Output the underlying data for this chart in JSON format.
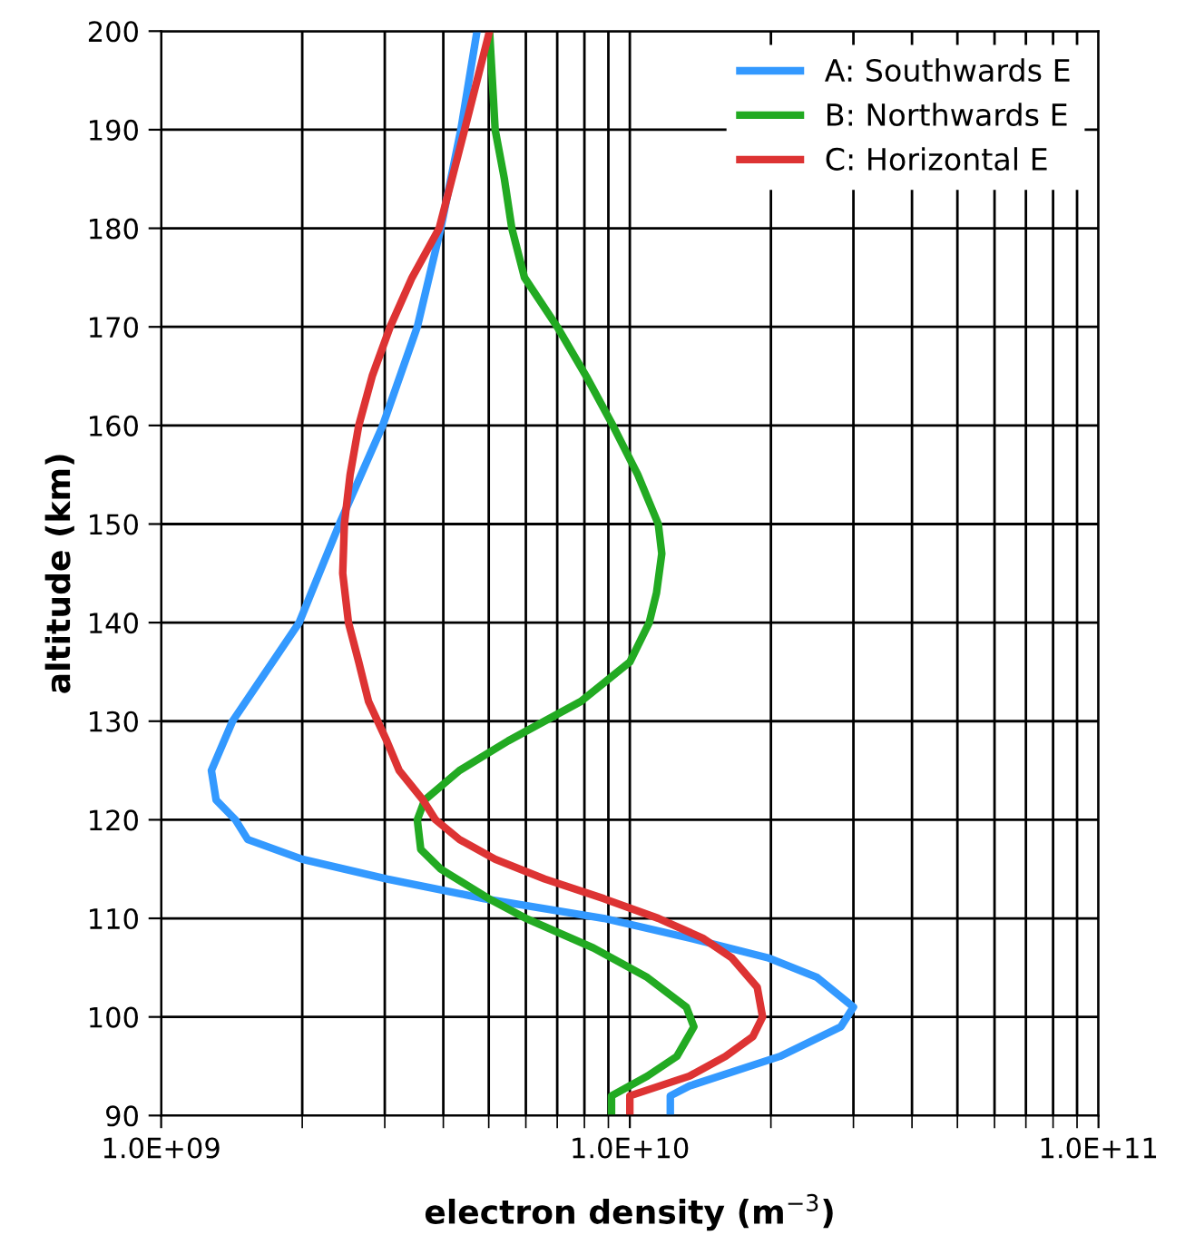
{
  "chart_data": {
    "type": "line",
    "xlabel": "electron density (m$^{−3}$)",
    "ylabel": "altitude (km)",
    "log": "x",
    "xlim": [
      1000000000.0,
      100000000000.0
    ],
    "xticks": [
      {
        "value": 1000000000.0,
        "label": "1.0E+09"
      },
      {
        "value": 10000000000.0,
        "label": "1.0E+10"
      },
      {
        "value": 100000000000.0,
        "label": "1.0E+11"
      }
    ],
    "ylim": [
      90,
      200
    ],
    "yticks": [
      90,
      100,
      110,
      120,
      130,
      140,
      150,
      160,
      170,
      180,
      190,
      200
    ],
    "grid": true,
    "legend": "top right",
    "marker": "none",
    "line_style": "solid",
    "series": [
      {
        "name": "A: Southwards E",
        "color": "#3399ff",
        "x": [
          4720000000.0,
          4360000000.0,
          3950000000.0,
          3520000000.0,
          2970000000.0,
          2400000000.0,
          1970000000.0,
          1420000000.0,
          1280000000.0,
          1310000000.0,
          1440000000.0,
          1530000000.0,
          2000000000.0,
          3030000000.0,
          4890000000.0,
          8800000000.0,
          13400000000.0,
          19700000000.0,
          25100000000.0,
          30000000000.0,
          28200000000.0,
          20900000000.0,
          13400000000.0,
          12200000000.0,
          12200000000.0
        ],
        "values": [
          200,
          190,
          180,
          170,
          160,
          150,
          140,
          130,
          125,
          122,
          120,
          118,
          116,
          114,
          112,
          110,
          108,
          106,
          104,
          101,
          99,
          96,
          93,
          92,
          90
        ]
      },
      {
        "name": "B: Northwards E",
        "color": "#22aa22",
        "x": [
          5020000000.0,
          5160000000.0,
          5400000000.0,
          5600000000.0,
          5960000000.0,
          7000000000.0,
          8070000000.0,
          9200000000.0,
          10400000000.0,
          11500000000.0,
          11700000000.0,
          11400000000.0,
          11000000000.0,
          10000000000.0,
          7860000000.0,
          5500000000.0,
          4330000000.0,
          3650000000.0,
          3520000000.0,
          3580000000.0,
          3950000000.0,
          5000000000.0,
          6000000000.0,
          8360000000.0,
          10900000000.0,
          13200000000.0,
          13700000000.0,
          12600000000.0,
          10900000000.0,
          9140000000.0,
          9140000000.0
        ],
        "values": [
          200,
          190,
          185,
          180,
          175,
          170,
          165,
          160,
          155,
          150,
          147,
          143,
          140,
          136,
          132,
          128,
          125,
          122,
          120,
          117,
          115,
          112,
          110,
          107,
          104,
          101,
          99,
          96,
          94,
          92,
          90
        ]
      },
      {
        "name": "C: Horizontal E",
        "color": "#dd3333",
        "x": [
          5020000000.0,
          4440000000.0,
          3920000000.0,
          3430000000.0,
          3080000000.0,
          2820000000.0,
          2640000000.0,
          2530000000.0,
          2460000000.0,
          2440000000.0,
          2510000000.0,
          2640000000.0,
          2770000000.0,
          3030000000.0,
          3220000000.0,
          3620000000.0,
          3850000000.0,
          4330000000.0,
          5160000000.0,
          6580000000.0,
          8800000000.0,
          11500000000.0,
          14300000000.0,
          16500000000.0,
          18700000000.0,
          19200000000.0,
          18300000000.0,
          16000000000.0,
          13400000000.0,
          10000000000.0,
          10000000000.0
        ],
        "values": [
          200,
          190,
          180,
          175,
          170,
          165,
          160,
          155,
          150,
          145,
          140,
          136,
          132,
          128,
          125,
          122,
          120,
          118,
          116,
          114,
          112,
          110,
          108,
          106,
          103,
          100,
          98,
          96,
          94,
          92,
          90
        ]
      }
    ]
  }
}
